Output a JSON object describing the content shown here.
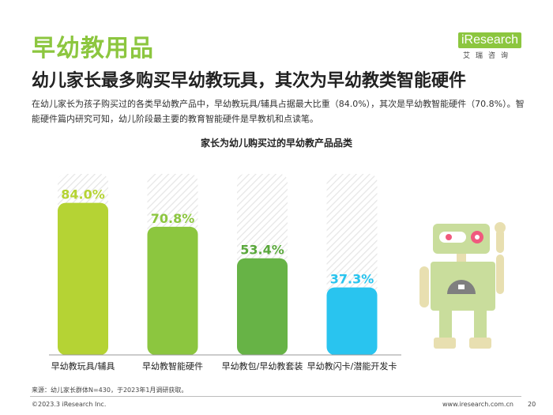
{
  "header": {
    "title": "早幼教用品",
    "subtitle": "幼儿家长最多购买早幼教玩具，其次为早幼教类智能硬件",
    "description": "在幼儿家长为孩子购买过的各类早幼教产品中，早幼教玩具/辅具占据最大比重（84.0%），其次是早幼教智能硬件（70.8%）。智能硬件篇内研究可知，幼儿阶段最主要的教育智能硬件是早教机和点读笔。"
  },
  "logo": {
    "main": "iResearch",
    "sub": "艾瑞咨询"
  },
  "chart_data": {
    "type": "bar",
    "title": "家长为幼儿购买过的早幼教产品品类",
    "categories": [
      "早幼教玩具/辅具",
      "早幼教智能硬件",
      "早幼教包/早幼教套装",
      "早幼教闪卡/潜能开发卡"
    ],
    "values": [
      84.0,
      70.8,
      53.4,
      37.3
    ],
    "value_labels": [
      "84.0%",
      "70.8%",
      "53.4%",
      "37.3%"
    ],
    "ylim": [
      0,
      100
    ],
    "colors": [
      "#b5d334",
      "#8cc63f",
      "#67b346",
      "#29c4ef"
    ],
    "label_colors": [
      "#b5d334",
      "#8cc63f",
      "#5aa83c",
      "#29c4ef"
    ],
    "grid": false,
    "background_stripes": true
  },
  "footer": {
    "source": "来源：幼儿家长群体N=430，于2023年1月调研获取。",
    "copyright": "©2023.3 iResearch Inc.",
    "website": "www.iresearch.com.cn",
    "page": "20"
  }
}
